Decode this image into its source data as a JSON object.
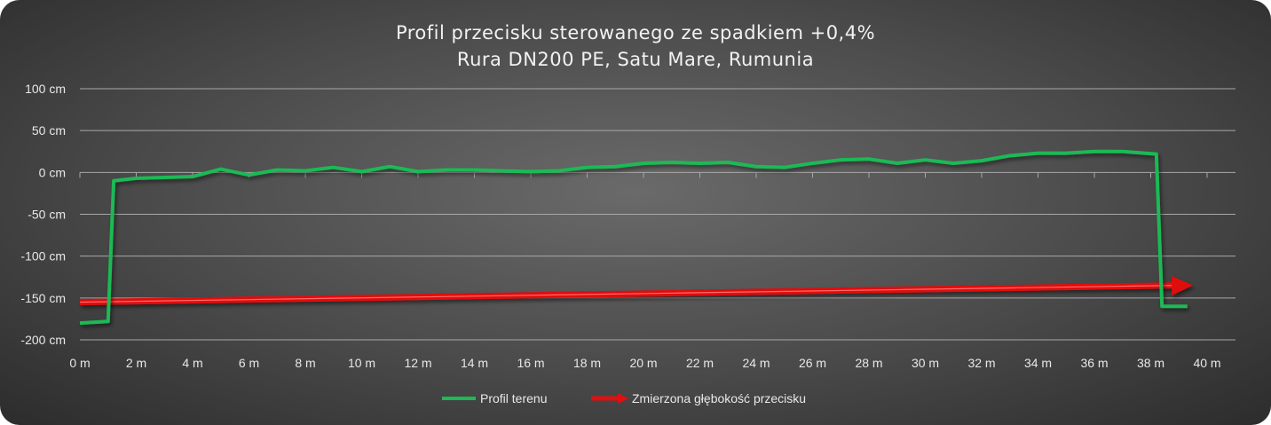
{
  "chart_data": {
    "type": "line",
    "title": "Profil przecisku sterowanego ze spadkiem +0,4%",
    "subtitle": "Rura DN200 PE, Satu Mare, Rumunia",
    "xlim": [
      0,
      40
    ],
    "ylim": [
      -200,
      100
    ],
    "x_ticks": [
      0,
      2,
      4,
      6,
      8,
      10,
      12,
      14,
      16,
      18,
      20,
      22,
      24,
      26,
      28,
      30,
      32,
      34,
      36,
      38,
      40
    ],
    "x_tick_labels": [
      "0 m",
      "2 m",
      "4 m",
      "6 m",
      "8 m",
      "10 m",
      "12 m",
      "14 m",
      "16 m",
      "18 m",
      "20 m",
      "22 m",
      "24 m",
      "26 m",
      "28 m",
      "30 m",
      "32 m",
      "34 m",
      "36 m",
      "38 m",
      "40 m"
    ],
    "y_ticks": [
      100,
      50,
      0,
      -50,
      -100,
      -150,
      -200
    ],
    "y_tick_labels": [
      "100 cm",
      "50 cm",
      "0 cm",
      "-50 cm",
      "-100 cm",
      "-150 cm",
      "-200 cm"
    ],
    "grid": true,
    "legend_position": "bottom",
    "series": [
      {
        "name": "Profil terenu",
        "color": "#1db954",
        "style": "line",
        "x": [
          0,
          1,
          1.2,
          2,
          3,
          4,
          5,
          6,
          7,
          8,
          9,
          10,
          11,
          12,
          13,
          14,
          15,
          16,
          17,
          18,
          19,
          20,
          21,
          22,
          23,
          24,
          25,
          26,
          27,
          28,
          29,
          30,
          31,
          32,
          33,
          34,
          35,
          36,
          37,
          38.2,
          38.4,
          39.3
        ],
        "y": [
          -180,
          -178,
          -10,
          -7,
          -6,
          -5,
          4,
          -3,
          3,
          2,
          6,
          1,
          7,
          1,
          3,
          3,
          2,
          1,
          2,
          6,
          7,
          11,
          12,
          11,
          12,
          7,
          6,
          11,
          15,
          16,
          11,
          15,
          11,
          14,
          20,
          23,
          23,
          25,
          25,
          22,
          -160,
          -160
        ]
      },
      {
        "name": "Zmierzona głębokość przecisku",
        "color": "#e01010",
        "style": "arrow",
        "x": [
          0,
          39.5
        ],
        "y": [
          -155,
          -135
        ]
      }
    ]
  }
}
